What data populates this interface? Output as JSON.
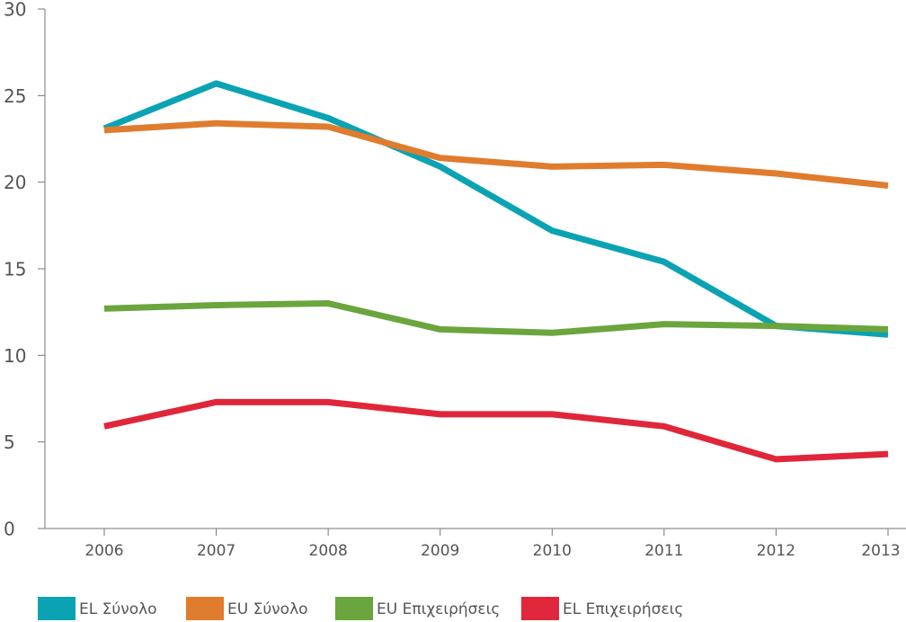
{
  "chart_data": {
    "type": "line",
    "categories": [
      "2006",
      "2007",
      "2008",
      "2009",
      "2010",
      "2011",
      "2012",
      "2013"
    ],
    "ylim": [
      0,
      30
    ],
    "yticks": [
      0,
      5,
      10,
      15,
      20,
      25,
      30
    ],
    "legend": "bottom-left",
    "series": [
      {
        "name": "EL Σύνολο",
        "color": "#0ba3b4",
        "values": [
          23.1,
          25.7,
          23.7,
          20.9,
          17.2,
          15.4,
          11.7,
          11.2
        ]
      },
      {
        "name": "EU Σύνολο",
        "color": "#e07c2e",
        "values": [
          23.0,
          23.4,
          23.2,
          21.4,
          20.9,
          21.0,
          20.5,
          19.8
        ]
      },
      {
        "name": "EU Επιχειρήσεις",
        "color": "#6ba53e",
        "values": [
          12.7,
          12.9,
          13.0,
          11.5,
          11.3,
          11.8,
          11.7,
          11.5
        ]
      },
      {
        "name": "EL Επιχειρήσεις",
        "color": "#e0263a",
        "values": [
          5.9,
          7.3,
          7.3,
          6.6,
          6.6,
          5.9,
          4.0,
          4.3
        ]
      }
    ]
  }
}
